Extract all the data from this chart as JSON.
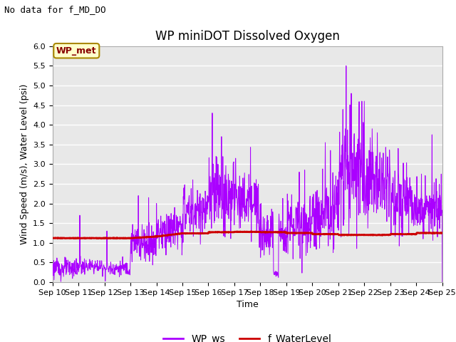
{
  "title": "WP miniDOT Dissolved Oxygen",
  "top_left_text": "No data for f_MD_DO",
  "ylabel": "Wind Speed (m/s), Water Level (psi)",
  "xlabel": "Time",
  "ylim": [
    0.0,
    6.0
  ],
  "yticks": [
    0.0,
    0.5,
    1.0,
    1.5,
    2.0,
    2.5,
    3.0,
    3.5,
    4.0,
    4.5,
    5.0,
    5.5,
    6.0
  ],
  "xtick_labels": [
    "Sep 10",
    "Sep 11",
    "Sep 12",
    "Sep 13",
    "Sep 14",
    "Sep 15",
    "Sep 16",
    "Sep 17",
    "Sep 18",
    "Sep 19",
    "Sep 20",
    "Sep 21",
    "Sep 22",
    "Sep 23",
    "Sep 24",
    "Sep 25"
  ],
  "legend_labels": [
    "WP_ws",
    "f_WaterLevel"
  ],
  "legend_colors": [
    "#aa00ff",
    "#cc0000"
  ],
  "inset_label": "WP_met",
  "inset_bg": "#ffffcc",
  "inset_border": "#aa8800",
  "inset_text_color": "#880000",
  "ws_color": "#aa00ff",
  "wl_color": "#cc0000",
  "bg_color": "#e8e8e8",
  "grid_color": "#ffffff",
  "title_fontsize": 12,
  "ylabel_fontsize": 9,
  "xlabel_fontsize": 9,
  "tick_fontsize": 8
}
